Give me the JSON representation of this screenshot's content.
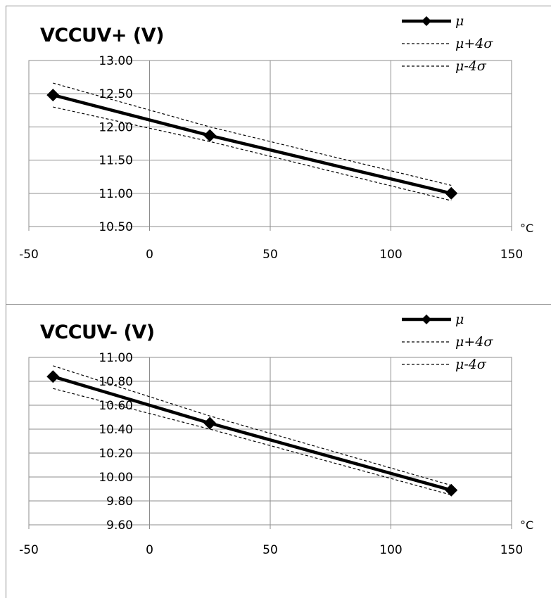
{
  "chart_data": [
    {
      "type": "line",
      "title": "VCCUV+ (V)",
      "xlabel": "°C",
      "ylabel": "",
      "xlim": [
        -50,
        150
      ],
      "ylim": [
        10.5,
        13.0
      ],
      "x_ticks": [
        "-50",
        "0",
        "50",
        "100",
        "150"
      ],
      "y_ticks": [
        "10.50",
        "11.00",
        "11.50",
        "12.00",
        "12.50",
        "13.00"
      ],
      "grid": true,
      "legend_position": "top-right",
      "x": [
        -40,
        25,
        125
      ],
      "series": [
        {
          "name": "μ",
          "values": [
            12.48,
            11.87,
            11.0
          ],
          "style": "solid",
          "marker": "diamond",
          "color": "#000000"
        },
        {
          "name": "μ+4σ",
          "values": [
            12.66,
            12.0,
            11.12
          ],
          "style": "dashed",
          "color": "#000000"
        },
        {
          "name": "μ-4σ",
          "values": [
            12.3,
            11.78,
            10.89
          ],
          "style": "dashed",
          "color": "#000000"
        }
      ]
    },
    {
      "type": "line",
      "title": "VCCUV- (V)",
      "xlabel": "°C",
      "ylabel": "",
      "xlim": [
        -50,
        150
      ],
      "ylim": [
        9.6,
        11.0
      ],
      "x_ticks": [
        "-50",
        "0",
        "50",
        "100",
        "150"
      ],
      "y_ticks": [
        "9.60",
        "9.80",
        "10.00",
        "10.20",
        "10.40",
        "10.60",
        "10.80",
        "11.00"
      ],
      "grid": true,
      "legend_position": "top-right",
      "x": [
        -40,
        25,
        125
      ],
      "series": [
        {
          "name": "μ",
          "values": [
            10.84,
            10.45,
            9.89
          ],
          "style": "solid",
          "marker": "diamond",
          "color": "#000000"
        },
        {
          "name": "μ+4σ",
          "values": [
            10.93,
            10.51,
            9.93
          ],
          "style": "dashed",
          "color": "#000000"
        },
        {
          "name": "μ-4σ",
          "values": [
            10.74,
            10.4,
            9.85
          ],
          "style": "dashed",
          "color": "#000000"
        }
      ]
    }
  ]
}
